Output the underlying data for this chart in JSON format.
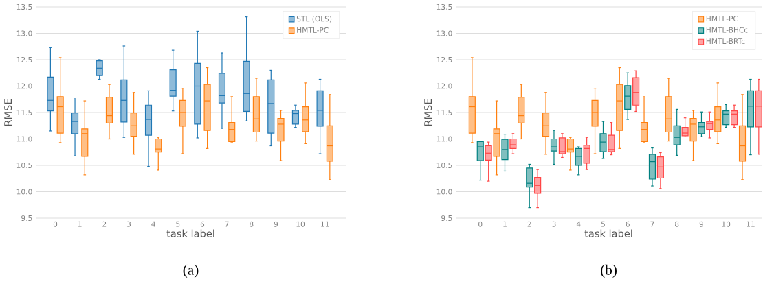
{
  "chart_data": [
    {
      "type": "box",
      "xlabel": "task label",
      "ylabel": "RMSE",
      "categories": [
        "0",
        "1",
        "2",
        "3",
        "4",
        "5",
        "6",
        "7",
        "8",
        "9",
        "10",
        "11"
      ],
      "ylim": [
        9.5,
        13.5
      ],
      "yticks": [
        9.5,
        {
          "value": 10,
          "label": "10.0"
        },
        10.5,
        {
          "value": 11,
          "label": "11.0"
        },
        11.5,
        {
          "value": 12,
          "label": "12.0"
        },
        12.5,
        {
          "value": 13,
          "label": "13.0"
        },
        13.5
      ],
      "grid": "y",
      "legend": "top right",
      "annotations": [
        "(a)"
      ],
      "series": [
        {
          "name": "STL (OLS)",
          "color": "#1f77b4",
          "boxes": [
            {
              "low": 11.15,
              "q1": 11.53,
              "median": 11.73,
              "q3": 12.17,
              "high": 12.73
            },
            {
              "low": 10.68,
              "q1": 11.1,
              "median": 11.33,
              "q3": 11.49,
              "high": 11.76
            },
            {
              "low": 12.13,
              "q1": 12.2,
              "median": 12.34,
              "q3": 12.48,
              "high": 12.5
            },
            {
              "low": 11.03,
              "q1": 11.32,
              "median": 11.73,
              "q3": 12.12,
              "high": 12.76
            },
            {
              "low": 10.48,
              "q1": 11.07,
              "median": 11.37,
              "q3": 11.64,
              "high": 11.91
            },
            {
              "low": 11.53,
              "q1": 11.81,
              "median": 11.92,
              "q3": 12.31,
              "high": 12.68
            },
            {
              "low": 11.02,
              "q1": 11.28,
              "median": 12.0,
              "q3": 12.43,
              "high": 13.04
            },
            {
              "low": 11.2,
              "q1": 11.68,
              "median": 11.82,
              "q3": 12.24,
              "high": 12.63
            },
            {
              "low": 11.34,
              "q1": 11.52,
              "median": 11.86,
              "q3": 12.47,
              "high": 13.31
            },
            {
              "low": 10.87,
              "q1": 11.11,
              "median": 11.67,
              "q3": 12.12,
              "high": 12.3
            },
            {
              "low": 11.22,
              "q1": 11.28,
              "median": 11.48,
              "q3": 11.54,
              "high": 11.64
            },
            {
              "low": 10.72,
              "q1": 11.24,
              "median": 11.54,
              "q3": 11.91,
              "high": 12.13
            }
          ]
        },
        {
          "name": "HMTL-PC",
          "color": "#ff7f0e",
          "boxes": [
            {
              "low": 10.93,
              "q1": 11.11,
              "median": 11.61,
              "q3": 11.8,
              "high": 12.54
            },
            {
              "low": 10.32,
              "q1": 10.67,
              "median": 11.1,
              "q3": 11.19,
              "high": 11.72
            },
            {
              "low": 11.0,
              "q1": 11.3,
              "median": 11.44,
              "q3": 11.79,
              "high": 12.03
            },
            {
              "low": 10.71,
              "q1": 11.05,
              "median": 11.25,
              "q3": 11.49,
              "high": 11.88
            },
            {
              "low": 10.41,
              "q1": 10.75,
              "median": 10.81,
              "q3": 11.0,
              "high": 11.03
            },
            {
              "low": 10.72,
              "q1": 11.24,
              "median": 11.5,
              "q3": 11.73,
              "high": 11.96
            },
            {
              "low": 10.82,
              "q1": 11.16,
              "median": 11.72,
              "q3": 12.03,
              "high": 12.35
            },
            {
              "low": 10.94,
              "q1": 10.95,
              "median": 11.18,
              "q3": 11.31,
              "high": 11.8
            },
            {
              "low": 10.96,
              "q1": 11.13,
              "median": 11.38,
              "q3": 11.8,
              "high": 12.15
            },
            {
              "low": 10.59,
              "q1": 10.96,
              "median": 11.28,
              "q3": 11.39,
              "high": 11.54
            },
            {
              "low": 10.91,
              "q1": 11.14,
              "median": 11.36,
              "q3": 11.61,
              "high": 12.06
            },
            {
              "low": 10.23,
              "q1": 10.58,
              "median": 10.87,
              "q3": 11.25,
              "high": 11.84
            }
          ]
        }
      ]
    },
    {
      "type": "box",
      "xlabel": "task label",
      "ylabel": "RMSE",
      "categories": [
        "0",
        "1",
        "2",
        "3",
        "4",
        "5",
        "6",
        "7",
        "8",
        "9",
        "10",
        "11"
      ],
      "ylim": [
        9.5,
        13.5
      ],
      "yticks": [
        9.5,
        {
          "value": 10,
          "label": "10.0"
        },
        10.5,
        {
          "value": 11,
          "label": "11.0"
        },
        11.5,
        {
          "value": 12,
          "label": "12.0"
        },
        12.5,
        {
          "value": 13,
          "label": "13.0"
        },
        13.5
      ],
      "grid": "y",
      "legend": "top right",
      "annotations": [
        "(b)"
      ],
      "series": [
        {
          "name": "HMTL-PC",
          "color": "#ff7f0e",
          "boxes": [
            {
              "low": 10.93,
              "q1": 11.11,
              "median": 11.61,
              "q3": 11.8,
              "high": 12.54
            },
            {
              "low": 10.32,
              "q1": 10.67,
              "median": 11.1,
              "q3": 11.19,
              "high": 11.72
            },
            {
              "low": 11.0,
              "q1": 11.3,
              "median": 11.44,
              "q3": 11.79,
              "high": 12.03
            },
            {
              "low": 10.71,
              "q1": 11.05,
              "median": 11.25,
              "q3": 11.49,
              "high": 11.88
            },
            {
              "low": 10.41,
              "q1": 10.75,
              "median": 10.81,
              "q3": 11.0,
              "high": 11.03
            },
            {
              "low": 10.72,
              "q1": 11.24,
              "median": 11.5,
              "q3": 11.73,
              "high": 11.96
            },
            {
              "low": 10.82,
              "q1": 11.16,
              "median": 11.72,
              "q3": 12.03,
              "high": 12.35
            },
            {
              "low": 10.94,
              "q1": 10.95,
              "median": 11.18,
              "q3": 11.31,
              "high": 11.8
            },
            {
              "low": 10.96,
              "q1": 11.13,
              "median": 11.38,
              "q3": 11.8,
              "high": 12.15
            },
            {
              "low": 10.59,
              "q1": 10.96,
              "median": 11.28,
              "q3": 11.39,
              "high": 11.54
            },
            {
              "low": 10.91,
              "q1": 11.14,
              "median": 11.36,
              "q3": 11.61,
              "high": 12.06
            },
            {
              "low": 10.23,
              "q1": 10.58,
              "median": 10.87,
              "q3": 11.25,
              "high": 11.84
            }
          ]
        },
        {
          "name": "HMTL-BHCc",
          "color": "#008080",
          "boxes": [
            {
              "low": 10.22,
              "q1": 10.59,
              "median": 10.85,
              "q3": 10.95,
              "high": 10.96
            },
            {
              "low": 10.39,
              "q1": 10.61,
              "median": 10.8,
              "q3": 10.99,
              "high": 11.09
            },
            {
              "low": 9.7,
              "q1": 10.09,
              "median": 10.16,
              "q3": 10.45,
              "high": 10.52
            },
            {
              "low": 10.52,
              "q1": 10.77,
              "median": 10.85,
              "q3": 11.0,
              "high": 11.16
            },
            {
              "low": 10.32,
              "q1": 10.5,
              "median": 10.67,
              "q3": 10.82,
              "high": 10.85
            },
            {
              "low": 10.63,
              "q1": 10.76,
              "median": 10.94,
              "q3": 11.1,
              "high": 11.33
            },
            {
              "low": 11.37,
              "q1": 11.56,
              "median": 11.81,
              "q3": 12.01,
              "high": 12.25
            },
            {
              "low": 10.11,
              "q1": 10.24,
              "median": 10.57,
              "q3": 10.71,
              "high": 10.83
            },
            {
              "low": 10.69,
              "q1": 10.89,
              "median": 11.03,
              "q3": 11.25,
              "high": 11.56
            },
            {
              "low": 11.04,
              "q1": 11.1,
              "median": 11.23,
              "q3": 11.31,
              "high": 11.51
            },
            {
              "low": 11.22,
              "q1": 11.27,
              "median": 11.47,
              "q3": 11.53,
              "high": 11.65
            },
            {
              "low": 10.7,
              "q1": 11.23,
              "median": 11.62,
              "q3": 11.91,
              "high": 12.13
            }
          ]
        },
        {
          "name": "HMTL-BRTc",
          "color": "#ff4545",
          "boxes": [
            {
              "low": 10.2,
              "q1": 10.6,
              "median": 10.73,
              "q3": 10.87,
              "high": 10.94
            },
            {
              "low": 10.72,
              "q1": 10.82,
              "median": 10.89,
              "q3": 11.0,
              "high": 11.1
            },
            {
              "low": 9.7,
              "q1": 9.97,
              "median": 10.12,
              "q3": 10.27,
              "high": 10.42
            },
            {
              "low": 10.65,
              "q1": 10.72,
              "median": 10.76,
              "q3": 11.02,
              "high": 11.1
            },
            {
              "low": 10.42,
              "q1": 10.54,
              "median": 10.82,
              "q3": 10.88,
              "high": 11.03
            },
            {
              "low": 10.7,
              "q1": 10.76,
              "median": 10.8,
              "q3": 11.07,
              "high": 11.31
            },
            {
              "low": 11.52,
              "q1": 11.64,
              "median": 11.88,
              "q3": 12.16,
              "high": 12.29
            },
            {
              "low": 10.06,
              "q1": 10.26,
              "median": 10.47,
              "q3": 10.66,
              "high": 10.74
            },
            {
              "low": 11.04,
              "q1": 11.06,
              "median": 11.11,
              "q3": 11.22,
              "high": 11.4
            },
            {
              "low": 11.02,
              "q1": 11.18,
              "median": 11.29,
              "q3": 11.33,
              "high": 11.51
            },
            {
              "low": 11.22,
              "q1": 11.27,
              "median": 11.47,
              "q3": 11.53,
              "high": 11.64
            },
            {
              "low": 10.71,
              "q1": 11.23,
              "median": 11.62,
              "q3": 11.91,
              "high": 12.13
            }
          ]
        }
      ]
    }
  ]
}
